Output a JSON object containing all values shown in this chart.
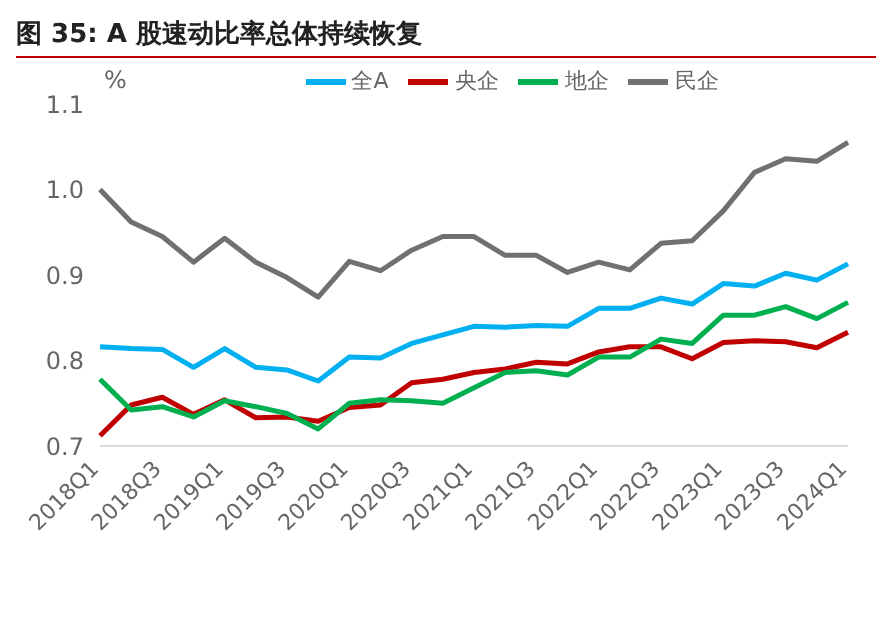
{
  "chart_data": {
    "type": "line",
    "title": "图 35:  A 股速动比率总体持续恢复",
    "ylabel": "%",
    "categories": [
      "2018Q1",
      null,
      "2018Q3",
      null,
      "2019Q1",
      null,
      "2019Q3",
      null,
      "2020Q1",
      null,
      "2020Q3",
      null,
      "2021Q1",
      null,
      "2021Q3",
      null,
      "2022Q1",
      null,
      "2022Q3",
      null,
      "2023Q1",
      null,
      "2023Q3",
      null,
      "2024Q1"
    ],
    "series": [
      {
        "name": "全A",
        "color": "#00b0f0",
        "values": [
          0.816,
          0.814,
          0.813,
          0.792,
          0.814,
          0.792,
          0.789,
          0.776,
          0.804,
          0.803,
          0.82,
          0.83,
          0.84,
          0.839,
          0.841,
          0.84,
          0.861,
          0.861,
          0.873,
          0.866,
          0.89,
          0.887,
          0.902,
          0.894,
          0.913
        ]
      },
      {
        "name": "央企",
        "color": "#c00000",
        "values": [
          0.712,
          0.748,
          0.757,
          0.737,
          0.754,
          0.733,
          0.734,
          0.729,
          0.745,
          0.748,
          0.774,
          0.778,
          0.786,
          0.79,
          0.798,
          0.796,
          0.81,
          0.816,
          0.816,
          0.802,
          0.821,
          0.823,
          0.822,
          0.815,
          0.833
        ]
      },
      {
        "name": "地企",
        "color": "#00b050",
        "values": [
          0.778,
          0.742,
          0.746,
          0.734,
          0.753,
          0.746,
          0.738,
          0.72,
          0.75,
          0.754,
          0.753,
          0.75,
          0.768,
          0.786,
          0.788,
          0.783,
          0.804,
          0.804,
          0.825,
          0.82,
          0.853,
          0.853,
          0.863,
          0.849,
          0.868
        ]
      },
      {
        "name": "民企",
        "color": "#707070",
        "values": [
          1.0,
          0.962,
          0.945,
          0.915,
          0.943,
          0.915,
          0.897,
          0.874,
          0.916,
          0.905,
          0.929,
          0.945,
          0.945,
          0.923,
          0.923,
          0.903,
          0.915,
          0.906,
          0.937,
          0.94,
          0.975,
          1.02,
          1.036,
          1.033,
          1.055
        ]
      }
    ],
    "ylim": [
      0.7,
      1.1
    ],
    "yticks": [
      0.7,
      0.8,
      0.9,
      {
        "value": 1,
        "label": "1.0"
      },
      1.1
    ],
    "grid": false,
    "legend": "top",
    "marker": "none",
    "line_style": "solid"
  }
}
